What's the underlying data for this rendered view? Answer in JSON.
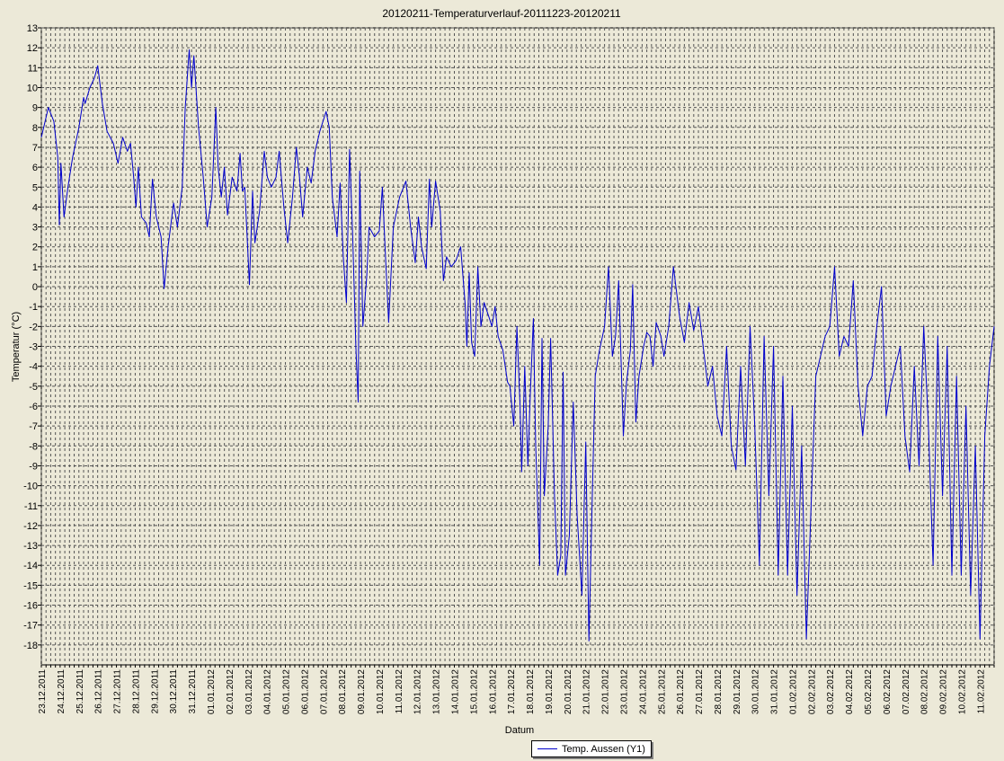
{
  "chart_data": {
    "type": "line",
    "title": "20120211-Temperaturverlauf-20111223-20120211",
    "xlabel": "Datum",
    "ylabel": "Temperatur (°C)",
    "ylim": [
      -19,
      13
    ],
    "yticks": [
      13,
      12,
      11,
      10,
      9,
      8,
      7,
      6,
      5,
      4,
      3,
      2,
      1,
      0,
      -1,
      -2,
      -3,
      -4,
      -5,
      -6,
      -7,
      -8,
      -9,
      -10,
      -11,
      -12,
      -13,
      -14,
      -15,
      -16,
      -17,
      -18
    ],
    "xlim": [
      "2011-12-23",
      "2012-02-11 18:00"
    ],
    "xtick_labels": [
      "23.12.2011",
      "24.12.2011",
      "25.12.2011",
      "26.12.2011",
      "27.12.2011",
      "28.12.2011",
      "29.12.2011",
      "30.12.2011",
      "31.12.2011",
      "01.01.2012",
      "02.01.2012",
      "03.01.2012",
      "04.01.2012",
      "05.01.2012",
      "06.01.2012",
      "07.01.2012",
      "08.01.2012",
      "09.01.2012",
      "10.01.2012",
      "11.01.2012",
      "12.01.2012",
      "13.01.2012",
      "14.01.2012",
      "15.01.2012",
      "16.01.2012",
      "17.01.2012",
      "18.01.2012",
      "19.01.2012",
      "20.01.2012",
      "21.01.2012",
      "22.01.2012",
      "23.01.2012",
      "24.01.2012",
      "25.01.2012",
      "26.01.2012",
      "27.01.2012",
      "28.01.2012",
      "29.01.2012",
      "30.01.2012",
      "31.01.2012",
      "01.02.2012",
      "02.02.2012",
      "03.02.2012",
      "04.02.2012",
      "05.02.2012",
      "06.02.2012",
      "07.02.2012",
      "08.02.2012",
      "09.02.2012",
      "10.02.2012",
      "11.02.2012"
    ],
    "grid": true,
    "legend_position": "bottom-center",
    "series": [
      {
        "name": "Temp. Aussen (Y1)",
        "color": "#0000cc",
        "points": [
          [
            "2011-12-23 00:00",
            7.5
          ],
          [
            "2011-12-23 06:00",
            8.5
          ],
          [
            "2011-12-23 09:00",
            9.0
          ],
          [
            "2011-12-23 16:00",
            8.3
          ],
          [
            "2011-12-23 21:00",
            6.5
          ],
          [
            "2011-12-23 23:00",
            3.1
          ],
          [
            "2011-12-24 01:00",
            6.2
          ],
          [
            "2011-12-24 05:00",
            3.5
          ],
          [
            "2011-12-24 10:00",
            5.0
          ],
          [
            "2011-12-24 16:00",
            6.5
          ],
          [
            "2011-12-25 00:00",
            8.0
          ],
          [
            "2011-12-25 06:00",
            9.5
          ],
          [
            "2011-12-25 08:00",
            9.2
          ],
          [
            "2011-12-25 14:00",
            10.0
          ],
          [
            "2011-12-25 20:00",
            10.5
          ],
          [
            "2011-12-26 00:00",
            11.1
          ],
          [
            "2011-12-26 06:00",
            9.2
          ],
          [
            "2011-12-26 12:00",
            7.8
          ],
          [
            "2011-12-26 20:00",
            7.2
          ],
          [
            "2011-12-27 02:00",
            6.2
          ],
          [
            "2011-12-27 08:00",
            7.5
          ],
          [
            "2011-12-27 14:00",
            6.8
          ],
          [
            "2011-12-27 18:00",
            7.2
          ],
          [
            "2011-12-27 22:00",
            5.5
          ],
          [
            "2011-12-28 01:00",
            4.0
          ],
          [
            "2011-12-28 04:00",
            6.0
          ],
          [
            "2011-12-28 08:00",
            3.5
          ],
          [
            "2011-12-28 14:00",
            3.2
          ],
          [
            "2011-12-28 18:00",
            2.5
          ],
          [
            "2011-12-28 22:00",
            5.4
          ],
          [
            "2011-12-29 03:00",
            3.5
          ],
          [
            "2011-12-29 09:00",
            2.5
          ],
          [
            "2011-12-29 13:00",
            -0.1
          ],
          [
            "2011-12-29 18:00",
            2.0
          ],
          [
            "2011-12-30 01:00",
            4.2
          ],
          [
            "2011-12-30 06:00",
            3.0
          ],
          [
            "2011-12-30 12:00",
            5.0
          ],
          [
            "2011-12-30 16:00",
            9.0
          ],
          [
            "2011-12-30 21:00",
            11.9
          ],
          [
            "2011-12-31 00:00",
            10.0
          ],
          [
            "2011-12-31 03:00",
            11.6
          ],
          [
            "2011-12-31 09:00",
            8.0
          ],
          [
            "2011-12-31 15:00",
            5.5
          ],
          [
            "2011-12-31 20:00",
            3.0
          ],
          [
            "2012-01-01 02:00",
            4.5
          ],
          [
            "2012-01-01 07:00",
            9.0
          ],
          [
            "2012-01-01 10:00",
            6.0
          ],
          [
            "2012-01-01 14:00",
            4.5
          ],
          [
            "2012-01-01 18:00",
            6.0
          ],
          [
            "2012-01-01 22:00",
            3.6
          ],
          [
            "2012-01-02 04:00",
            5.5
          ],
          [
            "2012-01-02 10:00",
            4.8
          ],
          [
            "2012-01-02 14:00",
            6.7
          ],
          [
            "2012-01-02 17:00",
            4.8
          ],
          [
            "2012-01-02 20:00",
            5.0
          ],
          [
            "2012-01-03 02:00",
            0.1
          ],
          [
            "2012-01-03 06:00",
            4.8
          ],
          [
            "2012-01-03 09:00",
            2.2
          ],
          [
            "2012-01-03 15:00",
            3.8
          ],
          [
            "2012-01-03 21:00",
            6.8
          ],
          [
            "2012-01-04 01:00",
            5.5
          ],
          [
            "2012-01-04 06:00",
            5.0
          ],
          [
            "2012-01-04 12:00",
            5.5
          ],
          [
            "2012-01-04 16:00",
            6.8
          ],
          [
            "2012-01-04 22:00",
            4.0
          ],
          [
            "2012-01-05 03:00",
            2.2
          ],
          [
            "2012-01-05 09:00",
            4.5
          ],
          [
            "2012-01-05 14:00",
            7.0
          ],
          [
            "2012-01-05 18:00",
            5.5
          ],
          [
            "2012-01-05 22:00",
            3.5
          ],
          [
            "2012-01-06 04:00",
            6.0
          ],
          [
            "2012-01-06 09:00",
            5.2
          ],
          [
            "2012-01-06 14:00",
            6.8
          ],
          [
            "2012-01-06 20:00",
            7.8
          ],
          [
            "2012-01-07 00:00",
            8.3
          ],
          [
            "2012-01-07 04:00",
            8.8
          ],
          [
            "2012-01-07 08:00",
            8.0
          ],
          [
            "2012-01-07 12:00",
            4.5
          ],
          [
            "2012-01-07 18:00",
            2.5
          ],
          [
            "2012-01-07 22:00",
            5.2
          ],
          [
            "2012-01-08 02:00",
            1.5
          ],
          [
            "2012-01-08 06:00",
            -0.8
          ],
          [
            "2012-01-08 10:00",
            6.9
          ],
          [
            "2012-01-08 14:00",
            2.5
          ],
          [
            "2012-01-08 18:00",
            -3.0
          ],
          [
            "2012-01-08 21:00",
            -5.8
          ],
          [
            "2012-01-08 23:00",
            5.8
          ],
          [
            "2012-01-09 03:00",
            -2.0
          ],
          [
            "2012-01-09 08:00",
            0.5
          ],
          [
            "2012-01-09 11:00",
            3.0
          ],
          [
            "2012-01-09 18:00",
            2.5
          ],
          [
            "2012-01-10 00:00",
            2.8
          ],
          [
            "2012-01-10 04:00",
            5.0
          ],
          [
            "2012-01-10 08:00",
            1.5
          ],
          [
            "2012-01-10 12:00",
            -1.8
          ],
          [
            "2012-01-10 18:00",
            3.0
          ],
          [
            "2012-01-11 02:00",
            4.5
          ],
          [
            "2012-01-11 10:00",
            5.3
          ],
          [
            "2012-01-11 16:00",
            3.0
          ],
          [
            "2012-01-11 22:00",
            1.2
          ],
          [
            "2012-01-12 02:00",
            3.5
          ],
          [
            "2012-01-12 06:00",
            2.0
          ],
          [
            "2012-01-12 12:00",
            0.9
          ],
          [
            "2012-01-12 16:00",
            5.4
          ],
          [
            "2012-01-12 19:00",
            3.0
          ],
          [
            "2012-01-13 00:00",
            5.3
          ],
          [
            "2012-01-13 06:00",
            3.8
          ],
          [
            "2012-01-13 10:00",
            0.3
          ],
          [
            "2012-01-13 14:00",
            1.5
          ],
          [
            "2012-01-13 20:00",
            1.0
          ],
          [
            "2012-01-14 02:00",
            1.3
          ],
          [
            "2012-01-14 08:00",
            2.0
          ],
          [
            "2012-01-14 14:00",
            -1.0
          ],
          [
            "2012-01-14 16:00",
            -3.0
          ],
          [
            "2012-01-14 19:00",
            0.7
          ],
          [
            "2012-01-14 22:00",
            -2.8
          ],
          [
            "2012-01-15 02:00",
            -3.5
          ],
          [
            "2012-01-15 06:00",
            1.0
          ],
          [
            "2012-01-15 10:00",
            -2.0
          ],
          [
            "2012-01-15 14:00",
            -0.8
          ],
          [
            "2012-01-15 20:00",
            -1.5
          ],
          [
            "2012-01-16 00:00",
            -2.0
          ],
          [
            "2012-01-16 04:00",
            -1.0
          ],
          [
            "2012-01-16 08:00",
            -2.5
          ],
          [
            "2012-01-16 14:00",
            -3.2
          ],
          [
            "2012-01-16 20:00",
            -4.8
          ],
          [
            "2012-01-16 23:00",
            -5.0
          ],
          [
            "2012-01-17 04:00",
            -7.0
          ],
          [
            "2012-01-17 08:00",
            -2.0
          ],
          [
            "2012-01-17 12:00",
            -6.0
          ],
          [
            "2012-01-17 14:00",
            -9.3
          ],
          [
            "2012-01-17 18:00",
            -4.0
          ],
          [
            "2012-01-17 22:00",
            -9.0
          ],
          [
            "2012-01-18 01:00",
            -5.5
          ],
          [
            "2012-01-18 05:00",
            -1.6
          ],
          [
            "2012-01-18 08:00",
            -8.0
          ],
          [
            "2012-01-18 13:00",
            -14.0
          ],
          [
            "2012-01-18 16:00",
            -2.6
          ],
          [
            "2012-01-18 19:00",
            -10.5
          ],
          [
            "2012-01-19 00:00",
            -7.0
          ],
          [
            "2012-01-19 03:00",
            -2.6
          ],
          [
            "2012-01-19 08:00",
            -10.5
          ],
          [
            "2012-01-19 12:00",
            -14.5
          ],
          [
            "2012-01-19 16:00",
            -13.5
          ],
          [
            "2012-01-19 19:00",
            -4.3
          ],
          [
            "2012-01-19 22:00",
            -14.5
          ],
          [
            "2012-01-20 03:00",
            -12.5
          ],
          [
            "2012-01-20 08:00",
            -5.8
          ],
          [
            "2012-01-20 13:00",
            -11.5
          ],
          [
            "2012-01-20 19:00",
            -15.5
          ],
          [
            "2012-01-21 00:00",
            -7.8
          ],
          [
            "2012-01-21 04:00",
            -17.8
          ],
          [
            "2012-01-21 08:00",
            -11.0
          ],
          [
            "2012-01-21 12:00",
            -4.5
          ],
          [
            "2012-01-21 17:00",
            -3.3
          ],
          [
            "2012-01-22 00:00",
            -2.0
          ],
          [
            "2012-01-22 05:00",
            1.0
          ],
          [
            "2012-01-22 10:00",
            -3.5
          ],
          [
            "2012-01-22 14:00",
            -2.5
          ],
          [
            "2012-01-22 18:00",
            0.3
          ],
          [
            "2012-01-23 00:00",
            -7.5
          ],
          [
            "2012-01-23 04:00",
            -4.8
          ],
          [
            "2012-01-23 09:00",
            -3.2
          ],
          [
            "2012-01-23 12:00",
            0.1
          ],
          [
            "2012-01-23 16:00",
            -6.8
          ],
          [
            "2012-01-23 20:00",
            -4.5
          ],
          [
            "2012-01-24 02:00",
            -3.0
          ],
          [
            "2012-01-24 06:00",
            -2.3
          ],
          [
            "2012-01-24 10:00",
            -2.5
          ],
          [
            "2012-01-24 14:00",
            -4.0
          ],
          [
            "2012-01-24 18:00",
            -1.8
          ],
          [
            "2012-01-25 00:00",
            -2.5
          ],
          [
            "2012-01-25 04:00",
            -3.5
          ],
          [
            "2012-01-25 10:00",
            -2.0
          ],
          [
            "2012-01-25 16:00",
            1.0
          ],
          [
            "2012-01-26 00:00",
            -1.5
          ],
          [
            "2012-01-26 06:00",
            -2.8
          ],
          [
            "2012-01-26 12:00",
            -0.8
          ],
          [
            "2012-01-26 18:00",
            -2.2
          ],
          [
            "2012-01-27 00:00",
            -1.0
          ],
          [
            "2012-01-27 06:00",
            -3.0
          ],
          [
            "2012-01-27 12:00",
            -5.0
          ],
          [
            "2012-01-27 18:00",
            -4.0
          ],
          [
            "2012-01-28 00:00",
            -6.5
          ],
          [
            "2012-01-28 06:00",
            -7.5
          ],
          [
            "2012-01-28 12:00",
            -3.0
          ],
          [
            "2012-01-28 18:00",
            -8.0
          ],
          [
            "2012-01-29 00:00",
            -9.2
          ],
          [
            "2012-01-29 06:00",
            -4.0
          ],
          [
            "2012-01-29 12:00",
            -9.0
          ],
          [
            "2012-01-29 18:00",
            -2.0
          ],
          [
            "2012-01-30 00:00",
            -7.0
          ],
          [
            "2012-01-30 06:00",
            -14.0
          ],
          [
            "2012-01-30 12:00",
            -2.5
          ],
          [
            "2012-01-30 18:00",
            -10.5
          ],
          [
            "2012-01-31 00:00",
            -3.0
          ],
          [
            "2012-01-31 06:00",
            -14.5
          ],
          [
            "2012-01-31 12:00",
            -4.5
          ],
          [
            "2012-01-31 18:00",
            -14.5
          ],
          [
            "2012-02-01 00:00",
            -6.0
          ],
          [
            "2012-02-01 06:00",
            -15.5
          ],
          [
            "2012-02-01 12:00",
            -8.0
          ],
          [
            "2012-02-01 18:00",
            -17.7
          ],
          [
            "2012-02-02 00:00",
            -11.0
          ],
          [
            "2012-02-02 06:00",
            -4.5
          ],
          [
            "2012-02-02 12:00",
            -3.5
          ],
          [
            "2012-02-02 18:00",
            -2.5
          ],
          [
            "2012-02-03 00:00",
            -2.0
          ],
          [
            "2012-02-03 06:00",
            1.0
          ],
          [
            "2012-02-03 12:00",
            -3.5
          ],
          [
            "2012-02-03 18:00",
            -2.5
          ],
          [
            "2012-02-04 00:00",
            -3.0
          ],
          [
            "2012-02-04 06:00",
            0.3
          ],
          [
            "2012-02-04 12:00",
            -5.0
          ],
          [
            "2012-02-04 18:00",
            -7.5
          ],
          [
            "2012-02-05 00:00",
            -5.0
          ],
          [
            "2012-02-05 06:00",
            -4.5
          ],
          [
            "2012-02-05 12:00",
            -2.0
          ],
          [
            "2012-02-05 18:00",
            0.0
          ],
          [
            "2012-02-06 00:00",
            -6.5
          ],
          [
            "2012-02-06 06:00",
            -5.0
          ],
          [
            "2012-02-06 12:00",
            -4.0
          ],
          [
            "2012-02-06 18:00",
            -3.0
          ],
          [
            "2012-02-07 00:00",
            -7.5
          ],
          [
            "2012-02-07 06:00",
            -9.3
          ],
          [
            "2012-02-07 12:00",
            -4.0
          ],
          [
            "2012-02-07 18:00",
            -9.0
          ],
          [
            "2012-02-08 00:00",
            -2.0
          ],
          [
            "2012-02-08 06:00",
            -7.0
          ],
          [
            "2012-02-08 12:00",
            -14.0
          ],
          [
            "2012-02-08 18:00",
            -2.5
          ],
          [
            "2012-02-09 00:00",
            -10.5
          ],
          [
            "2012-02-09 06:00",
            -3.0
          ],
          [
            "2012-02-09 12:00",
            -14.5
          ],
          [
            "2012-02-09 18:00",
            -4.5
          ],
          [
            "2012-02-10 00:00",
            -14.5
          ],
          [
            "2012-02-10 06:00",
            -6.0
          ],
          [
            "2012-02-10 12:00",
            -15.5
          ],
          [
            "2012-02-10 18:00",
            -8.0
          ],
          [
            "2012-02-11 00:00",
            -17.7
          ],
          [
            "2012-02-11 06:00",
            -7.5
          ],
          [
            "2012-02-11 12:00",
            -4.0
          ],
          [
            "2012-02-11 18:00",
            -2.0
          ]
        ]
      }
    ]
  }
}
